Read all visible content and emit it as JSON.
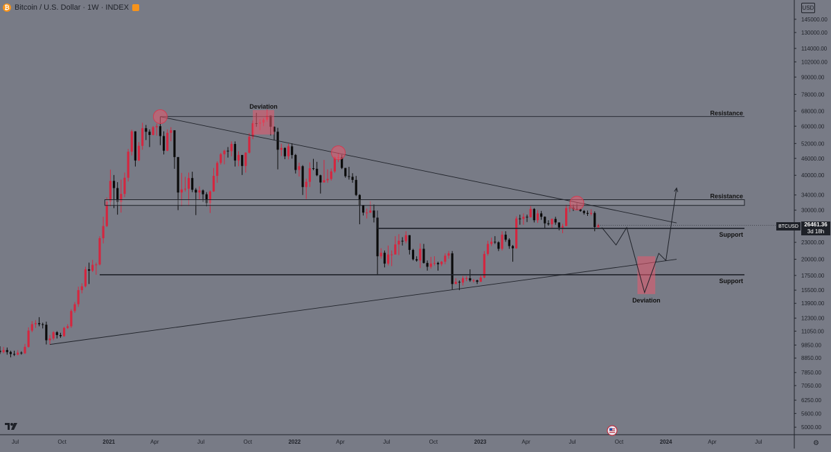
{
  "header": {
    "title": "Bitcoin / U.S. Dollar · 1W · INDEX",
    "icon": "bitcoin-logo-icon"
  },
  "currency_button": "USD",
  "price_tag": "BTCUSD",
  "last_price": "26461.36",
  "countdown": "3d 18h",
  "colors": {
    "background": "#787b86",
    "candle_up": "#d4263f",
    "candle_down": "#0a0a0a",
    "lines": "#1e2128",
    "highlight": "rgba(232,90,110,0.55)"
  },
  "chart_data": {
    "type": "candlestick",
    "timeframe": "1W",
    "y_axis_scale": "log",
    "ylim": [
      4700,
      170000
    ],
    "y_ticks": [
      "145000.00",
      "130000.00",
      "114000.00",
      "102000.00",
      "90000.00",
      "78000.00",
      "68000.00",
      "60000.00",
      "52000.00",
      "46000.00",
      "40000.00",
      "34000.00",
      "30000.00",
      "26000.00",
      "23000.00",
      "20000.00",
      "17500.00",
      "15500.00",
      "13900.00",
      "12300.00",
      "11050.00",
      "9850.00",
      "8850.00",
      "7850.00",
      "7050.00",
      "6250.00",
      "5600.00",
      "5000.00"
    ],
    "x_ticks": [
      "Jul",
      "Oct",
      "2021",
      "Apr",
      "Jul",
      "Oct",
      "2022",
      "Apr",
      "Jul",
      "Oct",
      "2023",
      "Apr",
      "Jul",
      "Oct",
      "2024",
      "Apr",
      "Jul"
    ],
    "x_range": [
      "2020-06-01",
      "2024-09-08"
    ],
    "candles": [
      [
        "2020-06-01",
        9400,
        9750,
        9150,
        9300
      ],
      [
        "2020-06-08",
        9300,
        9700,
        9200,
        9450
      ],
      [
        "2020-06-15",
        9450,
        9650,
        9100,
        9300
      ],
      [
        "2020-06-22",
        9300,
        9400,
        8900,
        9150
      ],
      [
        "2020-06-29",
        9150,
        9400,
        9000,
        9100
      ],
      [
        "2020-07-06",
        9100,
        9450,
        9050,
        9250
      ],
      [
        "2020-07-13",
        9250,
        9350,
        9100,
        9200
      ],
      [
        "2020-07-20",
        9200,
        9950,
        9150,
        9700
      ],
      [
        "2020-07-27",
        9700,
        11400,
        9650,
        11100
      ],
      [
        "2020-08-03",
        11100,
        12000,
        10950,
        11700
      ],
      [
        "2020-08-10",
        11700,
        12100,
        11350,
        11800
      ],
      [
        "2020-08-17",
        11800,
        12400,
        11500,
        11700
      ],
      [
        "2020-08-24",
        11700,
        11850,
        11300,
        11650
      ],
      [
        "2020-08-31",
        11650,
        11950,
        9900,
        10250
      ],
      [
        "2020-09-07",
        10250,
        10700,
        9900,
        10400
      ],
      [
        "2020-09-14",
        10400,
        11050,
        10250,
        10950
      ],
      [
        "2020-09-21",
        10950,
        11050,
        10400,
        10700
      ],
      [
        "2020-09-28",
        10700,
        10900,
        10450,
        10600
      ],
      [
        "2020-10-05",
        10600,
        11450,
        10550,
        11350
      ],
      [
        "2020-10-12",
        11350,
        11700,
        11250,
        11500
      ],
      [
        "2020-10-19",
        11500,
        13250,
        11350,
        13050
      ],
      [
        "2020-10-26",
        13050,
        14050,
        12850,
        13800
      ],
      [
        "2020-11-02",
        13800,
        15950,
        13500,
        15500
      ],
      [
        "2020-11-09",
        15500,
        16400,
        15100,
        16000
      ],
      [
        "2020-11-16",
        16000,
        18800,
        15850,
        18400
      ],
      [
        "2020-11-23",
        18400,
        19450,
        16300,
        18200
      ],
      [
        "2020-11-30",
        18200,
        19900,
        18000,
        19100
      ],
      [
        "2020-12-07",
        19100,
        19450,
        17600,
        19150
      ],
      [
        "2020-12-14",
        19150,
        24200,
        19000,
        23800
      ],
      [
        "2020-12-21",
        23800,
        28400,
        22800,
        26300
      ],
      [
        "2020-12-28",
        26300,
        33300,
        26100,
        32200
      ],
      [
        "2021-01-04",
        32200,
        41900,
        31000,
        38200
      ],
      [
        "2021-01-11",
        38200,
        40100,
        30500,
        36000
      ],
      [
        "2021-01-18",
        36000,
        37800,
        28900,
        32100
      ],
      [
        "2021-01-25",
        32100,
        38600,
        29400,
        34300
      ],
      [
        "2021-02-01",
        34300,
        40900,
        33400,
        39200
      ],
      [
        "2021-02-08",
        39200,
        49700,
        38000,
        48600
      ],
      [
        "2021-02-15",
        48600,
        58300,
        47100,
        57500
      ],
      [
        "2021-02-22",
        57500,
        57500,
        43000,
        45200
      ],
      [
        "2021-03-01",
        45200,
        52600,
        45000,
        51000
      ],
      [
        "2021-03-08",
        51000,
        61700,
        49400,
        59000
      ],
      [
        "2021-03-15",
        59000,
        60600,
        53500,
        57300
      ],
      [
        "2021-03-22",
        57300,
        58400,
        50500,
        55800
      ],
      [
        "2021-03-29",
        55800,
        60100,
        55600,
        59500
      ],
      [
        "2021-04-05",
        59500,
        61200,
        55500,
        60000
      ],
      [
        "2021-04-12",
        60000,
        64900,
        51300,
        55300
      ],
      [
        "2021-04-19",
        55300,
        57500,
        47500,
        49000
      ],
      [
        "2021-04-26",
        49000,
        58400,
        48800,
        56800
      ],
      [
        "2021-05-03",
        56800,
        59500,
        53000,
        58000
      ],
      [
        "2021-05-10",
        58000,
        58000,
        42200,
        46500
      ],
      [
        "2021-05-17",
        46500,
        46500,
        30000,
        34700
      ],
      [
        "2021-05-24",
        34700,
        40800,
        31000,
        35600
      ],
      [
        "2021-05-31",
        35600,
        39500,
        35000,
        35800
      ],
      [
        "2021-06-07",
        35800,
        40900,
        31100,
        39100
      ],
      [
        "2021-06-14",
        39100,
        41200,
        34800,
        35500
      ],
      [
        "2021-06-21",
        35500,
        36000,
        28800,
        34700
      ],
      [
        "2021-06-28",
        34700,
        36500,
        32800,
        35300
      ],
      [
        "2021-07-05",
        35300,
        35600,
        32100,
        34200
      ],
      [
        "2021-07-12",
        34200,
        34800,
        31000,
        31800
      ],
      [
        "2021-07-19",
        31800,
        35300,
        29300,
        35000
      ],
      [
        "2021-07-26",
        35000,
        42500,
        34900,
        39800
      ],
      [
        "2021-08-02",
        39800,
        44900,
        37600,
        44300
      ],
      [
        "2021-08-09",
        44300,
        48100,
        43700,
        47600
      ],
      [
        "2021-08-16",
        47600,
        49400,
        43800,
        49000
      ],
      [
        "2021-08-23",
        49000,
        50500,
        46300,
        48800
      ],
      [
        "2021-08-30",
        48800,
        52900,
        46800,
        51800
      ],
      [
        "2021-09-06",
        51800,
        52900,
        43000,
        45200
      ],
      [
        "2021-09-13",
        45200,
        48800,
        43100,
        47300
      ],
      [
        "2021-09-20",
        47300,
        47300,
        40100,
        43200
      ],
      [
        "2021-09-27",
        43200,
        48400,
        40900,
        48200
      ],
      [
        "2021-10-04",
        48200,
        56600,
        47900,
        55000
      ],
      [
        "2021-10-11",
        55000,
        62900,
        53900,
        61500
      ],
      [
        "2021-10-18",
        61500,
        67000,
        59700,
        61300
      ],
      [
        "2021-10-25",
        61300,
        63600,
        58000,
        61800
      ],
      [
        "2021-11-01",
        61800,
        64200,
        60000,
        63300
      ],
      [
        "2021-11-08",
        63300,
        69000,
        62300,
        65500
      ],
      [
        "2021-11-15",
        65500,
        65500,
        55600,
        59700
      ],
      [
        "2021-11-22",
        59700,
        59900,
        53600,
        57300
      ],
      [
        "2021-11-29",
        57300,
        59200,
        42000,
        49400
      ],
      [
        "2021-12-06",
        49400,
        51900,
        46900,
        50100
      ],
      [
        "2021-12-13",
        50100,
        50400,
        45700,
        46800
      ],
      [
        "2021-12-20",
        46800,
        51900,
        45600,
        50800
      ],
      [
        "2021-12-27",
        50800,
        52100,
        45900,
        47300
      ],
      [
        "2022-01-03",
        47300,
        47700,
        40600,
        41800
      ],
      [
        "2022-01-10",
        41800,
        44400,
        39600,
        43100
      ],
      [
        "2022-01-17",
        43100,
        43500,
        34000,
        36300
      ],
      [
        "2022-01-24",
        36300,
        38900,
        32900,
        37900
      ],
      [
        "2022-01-31",
        37900,
        44500,
        36300,
        42400
      ],
      [
        "2022-02-07",
        42400,
        45800,
        41700,
        42200
      ],
      [
        "2022-02-14",
        42200,
        44700,
        39700,
        40000
      ],
      [
        "2022-02-21",
        40000,
        40200,
        34400,
        37700
      ],
      [
        "2022-02-28",
        37700,
        45400,
        37700,
        38400
      ],
      [
        "2022-03-07",
        38400,
        42000,
        37600,
        38800
      ],
      [
        "2022-03-14",
        38800,
        42300,
        38300,
        41300
      ],
      [
        "2022-03-21",
        41300,
        46800,
        40800,
        46400
      ],
      [
        "2022-03-28",
        46400,
        48200,
        44600,
        46400
      ],
      [
        "2022-04-04",
        46400,
        47400,
        42100,
        42500
      ],
      [
        "2022-04-11",
        42500,
        42500,
        39200,
        39700
      ],
      [
        "2022-04-18",
        39700,
        42900,
        38600,
        39500
      ],
      [
        "2022-04-25",
        39500,
        40700,
        37600,
        38500
      ],
      [
        "2022-05-02",
        38500,
        39800,
        33700,
        34000
      ],
      [
        "2022-05-09",
        34000,
        34200,
        26700,
        31300
      ],
      [
        "2022-05-16",
        31300,
        31300,
        28700,
        29400
      ],
      [
        "2022-05-23",
        29400,
        30400,
        28000,
        29400
      ],
      [
        "2022-05-30",
        29400,
        32300,
        29300,
        29900
      ],
      [
        "2022-06-06",
        29900,
        31500,
        27100,
        28200
      ],
      [
        "2022-06-13",
        28200,
        28200,
        17600,
        20500
      ],
      [
        "2022-06-20",
        20500,
        21900,
        20100,
        21100
      ],
      [
        "2022-06-27",
        21100,
        21500,
        18700,
        19300
      ],
      [
        "2022-07-04",
        19300,
        22400,
        19000,
        20800
      ],
      [
        "2022-07-11",
        20800,
        21500,
        18900,
        20800
      ],
      [
        "2022-07-18",
        20800,
        24200,
        20800,
        22600
      ],
      [
        "2022-07-25",
        22600,
        24600,
        20700,
        23300
      ],
      [
        "2022-08-01",
        23300,
        24000,
        22400,
        23200
      ],
      [
        "2022-08-08",
        23200,
        25200,
        22800,
        24400
      ],
      [
        "2022-08-15",
        24400,
        24400,
        20800,
        21600
      ],
      [
        "2022-08-22",
        21600,
        21800,
        19800,
        20000
      ],
      [
        "2022-08-29",
        20000,
        20500,
        19600,
        19800
      ],
      [
        "2022-09-05",
        19800,
        22800,
        18600,
        21800
      ],
      [
        "2022-09-12",
        21800,
        22700,
        19300,
        19400
      ],
      [
        "2022-09-19",
        19400,
        19800,
        18200,
        18800
      ],
      [
        "2022-09-26",
        18800,
        20400,
        18500,
        19300
      ],
      [
        "2022-10-03",
        19300,
        20500,
        19000,
        19400
      ],
      [
        "2022-10-10",
        19400,
        19600,
        18200,
        19200
      ],
      [
        "2022-10-17",
        19200,
        19700,
        18900,
        19600
      ],
      [
        "2022-10-24",
        19600,
        21000,
        19200,
        20600
      ],
      [
        "2022-10-31",
        20600,
        21400,
        20100,
        21000
      ],
      [
        "2022-11-07",
        21000,
        21400,
        15600,
        16300
      ],
      [
        "2022-11-14",
        16300,
        17100,
        16300,
        16600
      ],
      [
        "2022-11-21",
        16600,
        16800,
        15500,
        16500
      ],
      [
        "2022-11-28",
        16500,
        17400,
        16100,
        17100
      ],
      [
        "2022-12-05",
        17100,
        17400,
        16700,
        17100
      ],
      [
        "2022-12-12",
        17100,
        18400,
        16600,
        16800
      ],
      [
        "2022-12-19",
        16800,
        17000,
        16500,
        16800
      ],
      [
        "2022-12-26",
        16800,
        16900,
        16300,
        16600
      ],
      [
        "2023-01-02",
        16600,
        17500,
        16600,
        17200
      ],
      [
        "2023-01-09",
        17200,
        21400,
        17100,
        20900
      ],
      [
        "2023-01-16",
        20900,
        23300,
        20600,
        22700
      ],
      [
        "2023-01-23",
        22700,
        23900,
        22300,
        23100
      ],
      [
        "2023-01-30",
        23100,
        24200,
        22700,
        23000
      ],
      [
        "2023-02-06",
        23000,
        23200,
        21400,
        21800
      ],
      [
        "2023-02-13",
        21800,
        25200,
        21500,
        24500
      ],
      [
        "2023-02-20",
        24500,
        25200,
        23100,
        23500
      ],
      [
        "2023-02-27",
        23500,
        23800,
        21800,
        22300
      ],
      [
        "2023-03-06",
        22300,
        22500,
        19600,
        21900
      ],
      [
        "2023-03-13",
        21900,
        28500,
        21800,
        28000
      ],
      [
        "2023-03-20",
        28000,
        28900,
        26600,
        27900
      ],
      [
        "2023-03-27",
        27900,
        29200,
        26600,
        28400
      ],
      [
        "2023-04-03",
        28400,
        28900,
        27200,
        28300
      ],
      [
        "2023-04-10",
        28300,
        31000,
        28200,
        30300
      ],
      [
        "2023-04-17",
        30300,
        30500,
        27100,
        27600
      ],
      [
        "2023-04-24",
        27600,
        30000,
        27000,
        29200
      ],
      [
        "2023-05-01",
        29200,
        29800,
        27700,
        28400
      ],
      [
        "2023-05-08",
        28400,
        28500,
        25800,
        26900
      ],
      [
        "2023-05-15",
        26900,
        27600,
        26400,
        26700
      ],
      [
        "2023-05-22",
        26700,
        28000,
        25900,
        27900
      ],
      [
        "2023-05-29",
        27900,
        28400,
        26600,
        27100
      ],
      [
        "2023-06-05",
        27100,
        27100,
        25400,
        26000
      ],
      [
        "2023-06-12",
        26000,
        26800,
        24800,
        26300
      ],
      [
        "2023-06-19",
        26300,
        31400,
        26300,
        30500
      ],
      [
        "2023-06-26",
        30500,
        31300,
        29500,
        30600
      ],
      [
        "2023-07-03",
        30600,
        31500,
        29800,
        30300
      ],
      [
        "2023-07-10",
        30300,
        31800,
        30200,
        30200
      ],
      [
        "2023-07-17",
        30200,
        30400,
        29600,
        29800
      ],
      [
        "2023-07-24",
        29800,
        30000,
        28900,
        29300
      ],
      [
        "2023-07-31",
        29300,
        29900,
        28600,
        29100
      ],
      [
        "2023-08-07",
        29100,
        30200,
        28700,
        29300
      ],
      [
        "2023-08-14",
        29300,
        29700,
        25200,
        26100
      ],
      [
        "2023-08-21",
        26100,
        26800,
        25800,
        26461
      ]
    ],
    "horizontal_levels": [
      {
        "price": 65000,
        "label": "Resistance",
        "weight": "thin"
      },
      {
        "price_low": 31200,
        "price_high": 32700,
        "label": "Resistance",
        "weight": "zone"
      },
      {
        "price": 25800,
        "label": "Support",
        "weight": "thick"
      },
      {
        "price": 17600,
        "label": "Support",
        "weight": "thick"
      }
    ],
    "trendlines": [
      {
        "from": [
          "2021-04-12",
          64900
        ],
        "to": [
          "2024-01-22",
          27000
        ],
        "kind": "descending"
      },
      {
        "from": [
          "2020-09-07",
          9900
        ],
        "to": [
          "2024-01-22",
          20000
        ],
        "kind": "ascending"
      }
    ],
    "projection_path": [
      [
        "2023-08-28",
        26000
      ],
      [
        "2023-09-25",
        22500
      ],
      [
        "2023-10-16",
        26000
      ],
      [
        "2023-11-20",
        15200
      ],
      [
        "2023-12-18",
        21000
      ],
      [
        "2024-01-01",
        19800
      ],
      [
        "2024-01-22",
        36000
      ]
    ],
    "highlights": [
      {
        "shape": "circle",
        "at": [
          "2021-04-12",
          64900
        ]
      },
      {
        "shape": "rect",
        "from": [
          "2021-10-11",
          56000
        ],
        "to": [
          "2021-11-22",
          68500
        ],
        "label": "Deviation"
      },
      {
        "shape": "circle",
        "at": [
          "2022-03-28",
          48200
        ]
      },
      {
        "shape": "circle",
        "at": [
          "2023-07-10",
          31800
        ]
      },
      {
        "shape": "rect",
        "from": [
          "2023-11-06",
          15000
        ],
        "to": [
          "2023-12-11",
          20500
        ],
        "label": "Deviation"
      }
    ]
  }
}
